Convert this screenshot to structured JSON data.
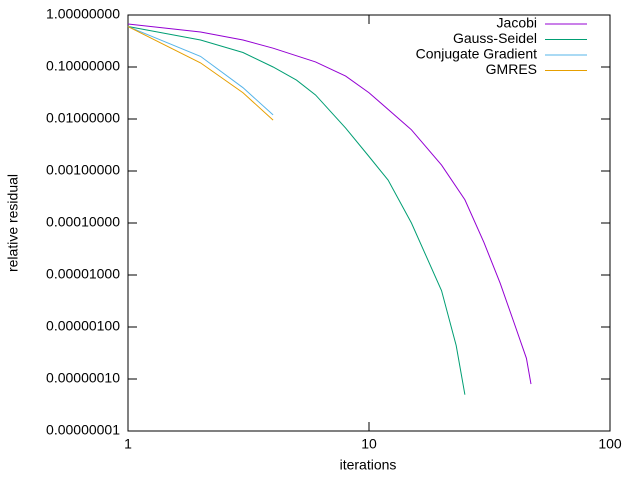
{
  "chart_data": {
    "type": "line",
    "xlabel": "iterations",
    "ylabel": "relative residual",
    "xscale": "log",
    "yscale": "log",
    "xlim": [
      1,
      100
    ],
    "xticks": [
      1,
      10,
      100
    ],
    "ylim": [
      1e-08,
      1
    ],
    "yticks": [
      {
        "value": 1,
        "label": "1.00000000"
      },
      {
        "value": 0.1,
        "label": "0.10000000"
      },
      {
        "value": 0.01,
        "label": "0.01000000"
      },
      {
        "value": 0.001,
        "label": "0.00100000"
      },
      {
        "value": 0.0001,
        "label": "0.00010000"
      },
      {
        "value": 1e-05,
        "label": "0.00001000"
      },
      {
        "value": 1e-06,
        "label": "0.00000100"
      },
      {
        "value": 1e-07,
        "label": "0.00000010"
      },
      {
        "value": 1e-08,
        "label": "0.00000001"
      }
    ],
    "legend": "top-right",
    "series": [
      {
        "name": "Jacobi",
        "color": "#9400d3",
        "x": [
          1,
          2,
          3,
          4,
          6,
          8,
          10,
          15,
          20,
          25,
          30,
          35,
          40,
          45,
          47
        ],
        "values": [
          0.67,
          0.47,
          0.33,
          0.23,
          0.125,
          0.067,
          0.032,
          0.0062,
          0.0013,
          0.00028,
          4.2e-05,
          7e-06,
          1.2e-06,
          2.5e-07,
          8e-08
        ]
      },
      {
        "name": "Gauss-Seidel",
        "color": "#009e73",
        "x": [
          1,
          2,
          3,
          4,
          5,
          6,
          8,
          10,
          12,
          15,
          20,
          23,
          25
        ],
        "values": [
          0.6,
          0.33,
          0.19,
          0.1,
          0.056,
          0.029,
          0.0067,
          0.0019,
          0.00067,
          0.0001,
          5e-06,
          4.4e-07,
          5e-08
        ]
      },
      {
        "name": "Conjugate Gradient",
        "color": "#56b4e9",
        "x": [
          1,
          2,
          3,
          4
        ],
        "values": [
          0.6,
          0.16,
          0.04,
          0.012
        ]
      },
      {
        "name": "GMRES",
        "color": "#e69f00",
        "x": [
          1,
          2,
          3,
          4
        ],
        "values": [
          0.6,
          0.12,
          0.032,
          0.0095
        ]
      }
    ]
  }
}
